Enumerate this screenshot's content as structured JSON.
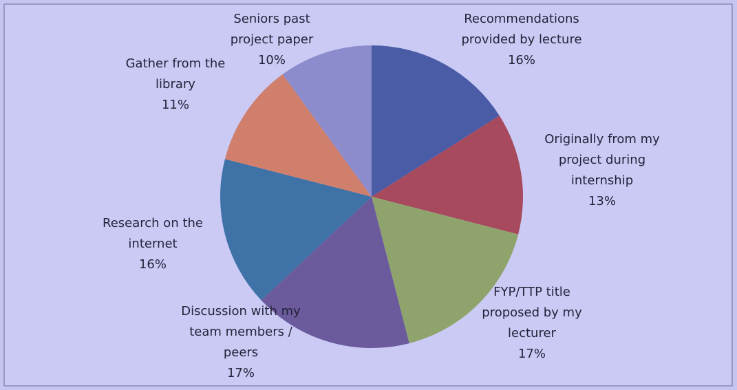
{
  "chart_data": {
    "type": "pie",
    "categories": [
      "Recommendations provided by lecture",
      "Originally from my project during internship",
      "FYP/TTP title proposed by my lecturer",
      "Discussion with my team members / peers",
      "Research on the internet",
      "Gather from the library",
      "Seniors past project paper"
    ],
    "values": [
      16,
      13,
      17,
      17,
      16,
      11,
      10
    ],
    "value_labels": [
      "16%",
      "13%",
      "17%",
      "17%",
      "16%",
      "11%",
      "10%"
    ],
    "colors": [
      "#4a5ca6",
      "#a84a5e",
      "#8fa46c",
      "#6b5a9c",
      "#3f72a6",
      "#d07f6c",
      "#8c8ccc"
    ]
  }
}
